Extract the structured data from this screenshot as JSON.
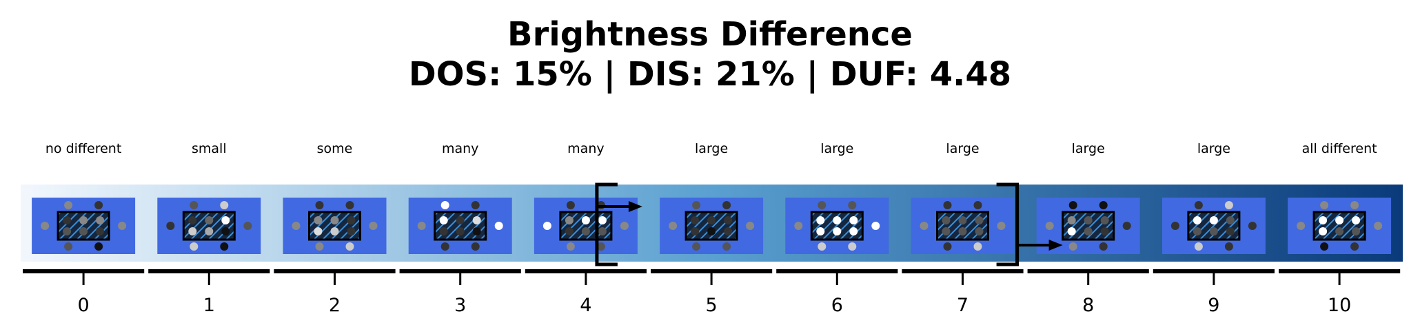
{
  "title_line1": "Brightness Difference",
  "title_line2": "DOS: 15% | DIS: 21% | DUF: 4.48",
  "colors": {
    "gradient_start": "#f2f7fd",
    "gradient_mid": "#5aa0d0",
    "gradient_end": "#0a3a7a",
    "card": "#4169e1",
    "inner_box": "#15263f",
    "hatch": "#3a8fd8"
  },
  "markers": {
    "left_bracket_after_step": 4,
    "right_bracket_after_step": 7
  },
  "steps": [
    {
      "tick": "0",
      "label": "no different",
      "dots": {
        "top": [
          "#888",
          "#333"
        ],
        "left": "#888",
        "right": "#888",
        "bottom": [
          "#555",
          "#111"
        ],
        "inner": [
          "#333",
          "#888",
          "#888",
          "#333",
          "#555",
          "#555",
          "#333",
          "#333"
        ]
      }
    },
    {
      "tick": "1",
      "label": "small",
      "dots": {
        "top": [
          "#555",
          "#ccc"
        ],
        "left": "#333",
        "right": "#555",
        "bottom": [
          "#ccc",
          "#111"
        ],
        "inner": [
          "#333",
          "#666",
          "#fff",
          "#333",
          "#ccc",
          "#aaa",
          "#111",
          "#333"
        ]
      }
    },
    {
      "tick": "2",
      "label": "some",
      "dots": {
        "top": [
          "#333",
          "#333"
        ],
        "left": "#888",
        "right": "#888",
        "bottom": [
          "#888",
          "#ccc"
        ],
        "inner": [
          "#888",
          "#888",
          "#333",
          "#333",
          "#ddd",
          "#ccc",
          "#333",
          "#333"
        ]
      }
    },
    {
      "tick": "3",
      "label": "many",
      "dots": {
        "top": [
          "#fff",
          "#333"
        ],
        "left": "#888",
        "right": "#fff",
        "bottom": [
          "#333",
          "#333"
        ],
        "inner": [
          "#fff",
          "#333",
          "#ddd",
          "#333",
          "#333",
          "#333",
          "#111",
          "#333"
        ]
      }
    },
    {
      "tick": "4",
      "label": "many",
      "dots": {
        "top": [
          "#333",
          "#333"
        ],
        "left": "#fff",
        "right": "#888",
        "bottom": [
          "#888",
          "#555"
        ],
        "inner": [
          "#888",
          "#fff",
          "#fff",
          "#333",
          "#333",
          "#555",
          "#555",
          "#333"
        ]
      }
    },
    {
      "tick": "5",
      "label": "large",
      "dots": {
        "top": [
          "#555",
          "#333"
        ],
        "left": "#888",
        "right": "#888",
        "bottom": [
          "#555",
          "#555"
        ],
        "inner": [
          "#333",
          "#333",
          "#333",
          "#333",
          "#333",
          "#111",
          "#333",
          "#333"
        ]
      }
    },
    {
      "tick": "6",
      "label": "large",
      "dots": {
        "top": [
          "#555",
          "#555"
        ],
        "left": "#888",
        "right": "#fff",
        "bottom": [
          "#ccc",
          "#ccc"
        ],
        "inner": [
          "#fff",
          "#fff",
          "#fff",
          "#333",
          "#fff",
          "#fff",
          "#fff",
          "#333"
        ]
      }
    },
    {
      "tick": "7",
      "label": "large",
      "dots": {
        "top": [
          "#333",
          "#333"
        ],
        "left": "#888",
        "right": "#888",
        "bottom": [
          "#333",
          "#ccc"
        ],
        "inner": [
          "#555",
          "#555",
          "#555",
          "#333",
          "#555",
          "#555",
          "#555",
          "#333"
        ]
      }
    },
    {
      "tick": "8",
      "label": "large",
      "dots": {
        "top": [
          "#111",
          "#111"
        ],
        "left": "#888",
        "right": "#333",
        "bottom": [
          "#888",
          "#333"
        ],
        "inner": [
          "#888",
          "#555",
          "#555",
          "#333",
          "#fff",
          "#555",
          "#333",
          "#333"
        ]
      }
    },
    {
      "tick": "9",
      "label": "large",
      "dots": {
        "top": [
          "#333",
          "#ccc"
        ],
        "left": "#333",
        "right": "#333",
        "bottom": [
          "#ccc",
          "#333"
        ],
        "inner": [
          "#fff",
          "#fff",
          "#555",
          "#333",
          "#555",
          "#555",
          "#333",
          "#333"
        ]
      }
    },
    {
      "tick": "10",
      "label": "all different",
      "dots": {
        "top": [
          "#888",
          "#888"
        ],
        "left": "#888",
        "right": "#888",
        "bottom": [
          "#111",
          "#333"
        ],
        "inner": [
          "#fff",
          "#fff",
          "#fff",
          "#333",
          "#fff",
          "#555",
          "#555",
          "#333"
        ]
      }
    }
  ]
}
